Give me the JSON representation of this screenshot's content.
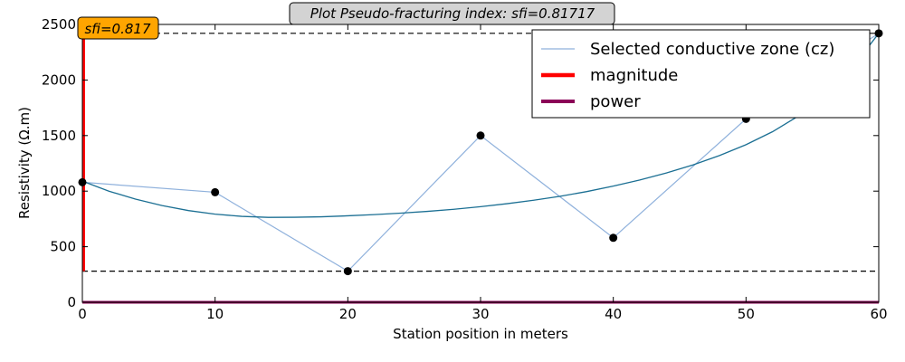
{
  "chart_data": {
    "type": "line",
    "title": "Plot Pseudo-fracturing index: sfi=0.81717",
    "xlabel": "Station position in meters",
    "ylabel": "Resistivity (Ω.m)",
    "xlim": [
      0,
      60
    ],
    "ylim": [
      0,
      2500
    ],
    "xticks": [
      0,
      10,
      20,
      30,
      40,
      50,
      60
    ],
    "yticks": [
      0,
      500,
      1000,
      1500,
      2000,
      2500
    ],
    "grid": false,
    "legend_position": "top-right",
    "annotation": "sfi=0.817",
    "series": [
      {
        "name": "Selected conductive zone (cz)",
        "kind": "line-with-markers",
        "color": "#8fb1dc",
        "marker_color": "#000000",
        "x": [
          0,
          10,
          20,
          30,
          40,
          50,
          60
        ],
        "y": [
          1080,
          990,
          280,
          1500,
          580,
          1650,
          2420
        ]
      },
      {
        "name": "",
        "kind": "fit-curve",
        "color": "#1b6f93",
        "x": [
          0,
          2,
          4,
          6,
          8,
          10,
          12,
          14,
          16,
          18,
          20,
          22,
          24,
          26,
          28,
          30,
          32,
          34,
          36,
          38,
          40,
          42,
          44,
          46,
          48,
          50,
          52,
          54,
          56,
          58,
          60
        ],
        "y": [
          1090,
          1000,
          928,
          870,
          825,
          793,
          773,
          764,
          765,
          769,
          778,
          789,
          802,
          818,
          837,
          860,
          887,
          918,
          954,
          996,
          1045,
          1100,
          1163,
          1236,
          1320,
          1418,
          1535,
          1680,
          1870,
          2110,
          2420
        ]
      },
      {
        "name": "magnitude",
        "kind": "vertical-bar",
        "color": "#ff0000",
        "x": 0.1,
        "y_range": [
          280,
          2420
        ]
      },
      {
        "name": "power",
        "kind": "horizontal-line",
        "color": "#8b0057",
        "y": 0
      }
    ],
    "reference_lines": [
      {
        "style": "dashed",
        "color": "#000000",
        "y": 2420
      },
      {
        "style": "dashed",
        "color": "#000000",
        "y": 280
      }
    ]
  }
}
